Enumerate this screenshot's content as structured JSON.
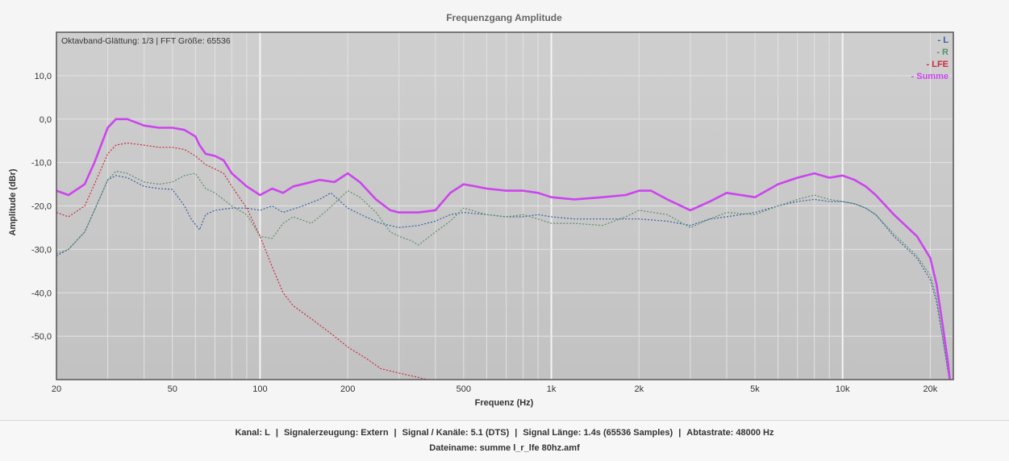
{
  "colors": {
    "L": "#3a5fa8",
    "R": "#5a9168",
    "LFE": "#cc2a3c",
    "Summe": "#cc44ee",
    "plot_bg": "#c8c8c8",
    "border": "#555555"
  },
  "chart_data": {
    "type": "line",
    "title": "Frequenzgang Amplitude",
    "subtitle": "Oktavband-Glättung: 1/3 | FFT Größe: 65536",
    "xlabel": "Frequenz (Hz)",
    "ylabel": "Amplitude (dBr)",
    "xscale": "log",
    "xlim": [
      20,
      24000
    ],
    "ylim": [
      -60,
      20
    ],
    "xticks": [
      20,
      50,
      100,
      200,
      500,
      1000,
      2000,
      5000,
      10000,
      20000
    ],
    "xtick_labels": [
      "20",
      "50",
      "100",
      "200",
      "500",
      "1k",
      "2k",
      "5k",
      "10k",
      "20k"
    ],
    "yticks": [
      10,
      0,
      -10,
      -20,
      -30,
      -40,
      -50
    ],
    "ytick_labels": [
      "10,0",
      "0,0",
      "-10,0",
      "-20,0",
      "-30,0",
      "-40,0",
      "-50,0"
    ],
    "grid": true,
    "legend_position": "top-right",
    "series": [
      {
        "name": "L",
        "style": "dotted",
        "points": [
          [
            20,
            -31.5
          ],
          [
            22,
            -30
          ],
          [
            25,
            -26
          ],
          [
            27,
            -21
          ],
          [
            30,
            -14
          ],
          [
            32,
            -13
          ],
          [
            35,
            -13.5
          ],
          [
            40,
            -15.5
          ],
          [
            45,
            -16
          ],
          [
            50,
            -16.2
          ],
          [
            55,
            -20
          ],
          [
            58,
            -23
          ],
          [
            62,
            -25.5
          ],
          [
            65,
            -22
          ],
          [
            70,
            -21
          ],
          [
            80,
            -20.5
          ],
          [
            90,
            -20.5
          ],
          [
            100,
            -21
          ],
          [
            110,
            -20
          ],
          [
            120,
            -21.5
          ],
          [
            140,
            -20
          ],
          [
            160,
            -18.5
          ],
          [
            175,
            -17
          ],
          [
            200,
            -20.5
          ],
          [
            230,
            -22.5
          ],
          [
            260,
            -24
          ],
          [
            300,
            -25
          ],
          [
            350,
            -24.5
          ],
          [
            400,
            -23.5
          ],
          [
            450,
            -22
          ],
          [
            500,
            -21.5
          ],
          [
            600,
            -22
          ],
          [
            700,
            -22.5
          ],
          [
            800,
            -22.5
          ],
          [
            900,
            -22
          ],
          [
            1000,
            -22.5
          ],
          [
            1200,
            -23
          ],
          [
            1500,
            -23
          ],
          [
            2000,
            -23
          ],
          [
            2500,
            -23.5
          ],
          [
            3000,
            -24.5
          ],
          [
            3500,
            -23
          ],
          [
            4000,
            -22.5
          ],
          [
            5000,
            -21.5
          ],
          [
            6000,
            -20
          ],
          [
            7000,
            -19
          ],
          [
            8000,
            -18.5
          ],
          [
            9000,
            -19
          ],
          [
            10000,
            -19
          ],
          [
            11000,
            -19.5
          ],
          [
            12000,
            -20.5
          ],
          [
            13000,
            -22
          ],
          [
            15000,
            -27
          ],
          [
            18000,
            -32
          ],
          [
            20000,
            -37
          ],
          [
            21000,
            -42
          ],
          [
            22000,
            -50
          ],
          [
            23000,
            -58
          ],
          [
            23500,
            -62
          ]
        ]
      },
      {
        "name": "R",
        "style": "dotted",
        "points": [
          [
            20,
            -31
          ],
          [
            22,
            -30
          ],
          [
            25,
            -26
          ],
          [
            27,
            -21
          ],
          [
            30,
            -14
          ],
          [
            32,
            -12
          ],
          [
            35,
            -12.5
          ],
          [
            40,
            -14.5
          ],
          [
            45,
            -15
          ],
          [
            50,
            -14.5
          ],
          [
            55,
            -13
          ],
          [
            60,
            -12.5
          ],
          [
            65,
            -16
          ],
          [
            70,
            -17
          ],
          [
            80,
            -20
          ],
          [
            90,
            -22
          ],
          [
            100,
            -27
          ],
          [
            110,
            -27.5
          ],
          [
            120,
            -24
          ],
          [
            130,
            -22.5
          ],
          [
            150,
            -24
          ],
          [
            170,
            -21
          ],
          [
            200,
            -16.5
          ],
          [
            220,
            -18
          ],
          [
            250,
            -21.5
          ],
          [
            280,
            -26
          ],
          [
            300,
            -27
          ],
          [
            330,
            -28
          ],
          [
            350,
            -29
          ],
          [
            400,
            -26
          ],
          [
            450,
            -23.5
          ],
          [
            500,
            -20.5
          ],
          [
            600,
            -22
          ],
          [
            700,
            -22.5
          ],
          [
            800,
            -22
          ],
          [
            900,
            -23
          ],
          [
            1000,
            -24
          ],
          [
            1200,
            -24
          ],
          [
            1500,
            -24.5
          ],
          [
            1800,
            -22.5
          ],
          [
            2000,
            -21
          ],
          [
            2500,
            -22
          ],
          [
            3000,
            -25
          ],
          [
            3500,
            -23
          ],
          [
            4000,
            -21.5
          ],
          [
            5000,
            -22
          ],
          [
            6000,
            -20
          ],
          [
            7000,
            -18.5
          ],
          [
            8000,
            -17.5
          ],
          [
            9000,
            -18.5
          ],
          [
            10000,
            -19
          ],
          [
            11000,
            -19.5
          ],
          [
            12000,
            -20.5
          ],
          [
            13000,
            -22
          ],
          [
            15000,
            -26.5
          ],
          [
            18000,
            -31.5
          ],
          [
            20000,
            -36
          ],
          [
            21000,
            -41
          ],
          [
            22000,
            -50
          ],
          [
            23000,
            -58
          ],
          [
            23500,
            -62
          ]
        ]
      },
      {
        "name": "LFE",
        "style": "dotted",
        "points": [
          [
            20,
            -21.5
          ],
          [
            22,
            -22.5
          ],
          [
            25,
            -20
          ],
          [
            27,
            -15
          ],
          [
            30,
            -8
          ],
          [
            32,
            -6
          ],
          [
            35,
            -5.5
          ],
          [
            40,
            -6
          ],
          [
            45,
            -6.5
          ],
          [
            50,
            -6.5
          ],
          [
            55,
            -7
          ],
          [
            60,
            -8.5
          ],
          [
            65,
            -10.5
          ],
          [
            70,
            -11.5
          ],
          [
            75,
            -12.5
          ],
          [
            80,
            -15.5
          ],
          [
            90,
            -20.5
          ],
          [
            100,
            -27
          ],
          [
            110,
            -34
          ],
          [
            120,
            -40
          ],
          [
            130,
            -43
          ],
          [
            150,
            -46
          ],
          [
            180,
            -50
          ],
          [
            200,
            -52.5
          ],
          [
            230,
            -55
          ],
          [
            260,
            -57.5
          ],
          [
            300,
            -58.5
          ],
          [
            350,
            -59.5
          ],
          [
            400,
            -60.5
          ]
        ]
      },
      {
        "name": "Summe",
        "style": "solid",
        "points": [
          [
            20,
            -16.5
          ],
          [
            22,
            -17.5
          ],
          [
            25,
            -15
          ],
          [
            27,
            -10
          ],
          [
            30,
            -2
          ],
          [
            32,
            0
          ],
          [
            35,
            0
          ],
          [
            40,
            -1.5
          ],
          [
            45,
            -2
          ],
          [
            50,
            -2
          ],
          [
            55,
            -2.5
          ],
          [
            60,
            -4
          ],
          [
            62,
            -6
          ],
          [
            65,
            -8
          ],
          [
            70,
            -8.5
          ],
          [
            75,
            -9.5
          ],
          [
            80,
            -12.5
          ],
          [
            90,
            -15.5
          ],
          [
            100,
            -17.5
          ],
          [
            110,
            -16
          ],
          [
            120,
            -17
          ],
          [
            130,
            -15.5
          ],
          [
            150,
            -14.5
          ],
          [
            160,
            -14
          ],
          [
            180,
            -14.5
          ],
          [
            200,
            -12.5
          ],
          [
            220,
            -14.5
          ],
          [
            250,
            -18.5
          ],
          [
            280,
            -21
          ],
          [
            300,
            -21.5
          ],
          [
            350,
            -21.5
          ],
          [
            400,
            -21
          ],
          [
            450,
            -17
          ],
          [
            500,
            -15
          ],
          [
            550,
            -15.5
          ],
          [
            600,
            -16
          ],
          [
            700,
            -16.5
          ],
          [
            800,
            -16.5
          ],
          [
            900,
            -17
          ],
          [
            1000,
            -18
          ],
          [
            1200,
            -18.5
          ],
          [
            1500,
            -18
          ],
          [
            1800,
            -17.5
          ],
          [
            2000,
            -16.5
          ],
          [
            2200,
            -16.5
          ],
          [
            2500,
            -18.5
          ],
          [
            3000,
            -21
          ],
          [
            3500,
            -19
          ],
          [
            4000,
            -17
          ],
          [
            5000,
            -18
          ],
          [
            6000,
            -15
          ],
          [
            7000,
            -13.5
          ],
          [
            8000,
            -12.5
          ],
          [
            9000,
            -13.5
          ],
          [
            10000,
            -13
          ],
          [
            11000,
            -14
          ],
          [
            12000,
            -15.5
          ],
          [
            13000,
            -17.5
          ],
          [
            15000,
            -22
          ],
          [
            18000,
            -27
          ],
          [
            20000,
            -32
          ],
          [
            21000,
            -38
          ],
          [
            22000,
            -47
          ],
          [
            23000,
            -56
          ],
          [
            23500,
            -62
          ]
        ]
      }
    ]
  },
  "footer": {
    "kanal": "Kanal: L",
    "signalerzeugung": "Signalerzeugung: Extern",
    "signal_kanaele": "Signal / Kanäle: 5.1 (DTS)",
    "signal_laenge": "Signal Länge: 1.4s (65536 Samples)",
    "abtastrate": "Abtastrate: 48000 Hz",
    "separator": "|",
    "dateiname": "Dateiname: summe l_r_lfe 80hz.amf"
  }
}
